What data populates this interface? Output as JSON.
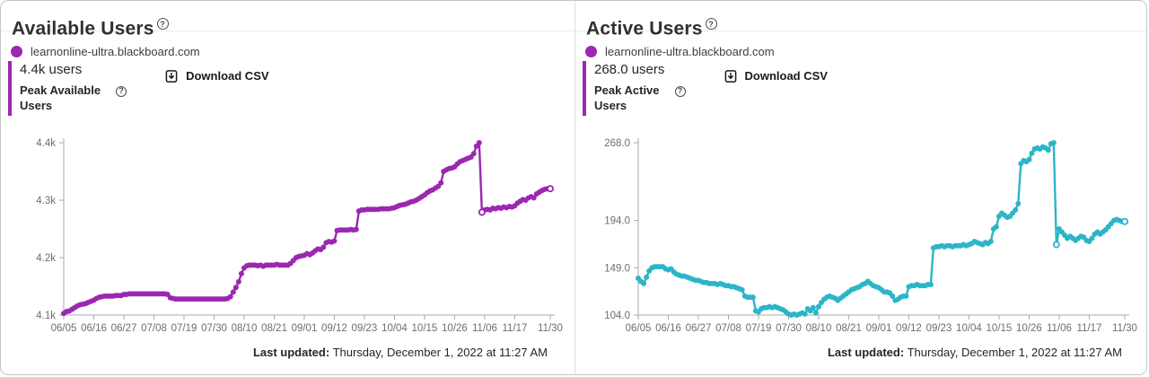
{
  "legend": {
    "label": "learnonline-ultra.blackboard.com",
    "dot_color": "#9c27b0"
  },
  "footer": {
    "label": "Last updated:",
    "value": "Thursday, December 1, 2022 at 11:27 AM"
  },
  "colors": {
    "accent_purple": "#9c27b0",
    "line_teal": "#2cb5c8",
    "axis_gray": "#a8a8a8",
    "text_dark": "#262626"
  },
  "panels": [
    {
      "stat_value": "4.4k users",
      "stat_label_line1": "Peak Available",
      "stat_label_line2": "Users",
      "download_label": "Download CSV"
    },
    {
      "stat_value": "268.0 users",
      "stat_label_line1": "Peak Active",
      "stat_label_line2": "Users",
      "download_label": "Download CSV"
    }
  ],
  "chart_data": [
    {
      "type": "line",
      "title": "Available Users",
      "series_name": "learnonline-ultra.blackboard.com",
      "color": "#9c27b0",
      "x_start_date": "06/05",
      "x_end_date": "11/30",
      "x_ticks": [
        {
          "label": "06/05",
          "day": 0
        },
        {
          "label": "06/16",
          "day": 11
        },
        {
          "label": "06/27",
          "day": 22
        },
        {
          "label": "07/08",
          "day": 33
        },
        {
          "label": "07/19",
          "day": 44
        },
        {
          "label": "07/30",
          "day": 55
        },
        {
          "label": "08/10",
          "day": 66
        },
        {
          "label": "08/21",
          "day": 77
        },
        {
          "label": "09/01",
          "day": 88
        },
        {
          "label": "09/12",
          "day": 99
        },
        {
          "label": "09/23",
          "day": 110
        },
        {
          "label": "10/04",
          "day": 121
        },
        {
          "label": "10/15",
          "day": 132
        },
        {
          "label": "10/26",
          "day": 143
        },
        {
          "label": "11/06",
          "day": 154
        },
        {
          "label": "11/17",
          "day": 165
        },
        {
          "label": "11/30",
          "day": 178
        }
      ],
      "y_ticks": [
        {
          "value": 4100,
          "label": "4.1k"
        },
        {
          "value": 4200,
          "label": "4.2k"
        },
        {
          "value": 4300,
          "label": "4.3k"
        },
        {
          "value": 4400,
          "label": "4.4k"
        }
      ],
      "ylim": [
        4100,
        4400
      ],
      "peak_value_label": "4.4k users",
      "open_marker_days": [
        153,
        178
      ],
      "values": [
        4103,
        4106,
        4107,
        4110,
        4113,
        4116,
        4118,
        4119,
        4120,
        4122,
        4124,
        4126,
        4129,
        4131,
        4132,
        4133,
        4133,
        4133,
        4133,
        4134,
        4134,
        4134,
        4136,
        4136,
        4137,
        4137,
        4137,
        4137,
        4137,
        4137,
        4137,
        4137,
        4137,
        4137,
        4137,
        4137,
        4137,
        4137,
        4136,
        4130,
        4129,
        4128,
        4128,
        4128,
        4128,
        4128,
        4128,
        4128,
        4128,
        4128,
        4128,
        4128,
        4128,
        4128,
        4128,
        4128,
        4128,
        4128,
        4128,
        4128,
        4129,
        4132,
        4140,
        4148,
        4158,
        4172,
        4182,
        4186,
        4187,
        4187,
        4187,
        4186,
        4187,
        4185,
        4187,
        4187,
        4187,
        4187,
        4188,
        4187,
        4187,
        4187,
        4187,
        4190,
        4195,
        4200,
        4202,
        4203,
        4204,
        4207,
        4205,
        4208,
        4212,
        4215,
        4214,
        4218,
        4226,
        4228,
        4227,
        4229,
        4247,
        4248,
        4248,
        4248,
        4248,
        4249,
        4248,
        4249,
        4281,
        4283,
        4283,
        4284,
        4284,
        4284,
        4284,
        4284,
        4285,
        4285,
        4285,
        4285,
        4286,
        4287,
        4289,
        4291,
        4292,
        4293,
        4295,
        4297,
        4298,
        4300,
        4303,
        4306,
        4309,
        4313,
        4316,
        4318,
        4321,
        4324,
        4330,
        4350,
        4353,
        4355,
        4356,
        4358,
        4363,
        4367,
        4369,
        4371,
        4373,
        4375,
        4381,
        4394,
        4400,
        4279,
        4283,
        4284,
        4283,
        4286,
        4285,
        4287,
        4286,
        4288,
        4287,
        4289,
        4288,
        4290,
        4295,
        4298,
        4301,
        4300,
        4304,
        4306,
        4304,
        4311,
        4314,
        4317,
        4319,
        4320,
        4320
      ]
    },
    {
      "type": "line",
      "title": "Active Users",
      "series_name": "learnonline-ultra.blackboard.com",
      "color": "#2cb5c8",
      "x_start_date": "06/05",
      "x_end_date": "11/30",
      "x_ticks": [
        {
          "label": "06/05",
          "day": 0
        },
        {
          "label": "06/16",
          "day": 11
        },
        {
          "label": "06/27",
          "day": 22
        },
        {
          "label": "07/08",
          "day": 33
        },
        {
          "label": "07/19",
          "day": 44
        },
        {
          "label": "07/30",
          "day": 55
        },
        {
          "label": "08/10",
          "day": 66
        },
        {
          "label": "08/21",
          "day": 77
        },
        {
          "label": "09/01",
          "day": 88
        },
        {
          "label": "09/12",
          "day": 99
        },
        {
          "label": "09/23",
          "day": 110
        },
        {
          "label": "10/04",
          "day": 121
        },
        {
          "label": "10/15",
          "day": 132
        },
        {
          "label": "10/26",
          "day": 143
        },
        {
          "label": "11/06",
          "day": 154
        },
        {
          "label": "11/17",
          "day": 165
        },
        {
          "label": "11/30",
          "day": 178
        }
      ],
      "y_ticks": [
        {
          "value": 104,
          "label": "104.0"
        },
        {
          "value": 149,
          "label": "149.0"
        },
        {
          "value": 194,
          "label": "194.0"
        },
        {
          "value": 268,
          "label": "268.0"
        }
      ],
      "ylim": [
        104,
        268
      ],
      "peak_value_label": "268.0 users",
      "open_marker_days": [
        153,
        178
      ],
      "values": [
        139,
        136,
        134,
        140,
        146,
        149,
        150,
        150,
        150,
        150,
        148,
        147,
        148,
        145,
        143,
        142,
        141,
        141,
        140,
        139,
        138,
        137,
        137,
        136,
        135,
        135,
        134,
        134,
        134,
        133,
        134,
        133,
        132,
        132,
        131,
        131,
        130,
        129,
        128,
        122,
        121,
        121,
        121,
        108,
        107,
        110,
        111,
        111,
        112,
        111,
        112,
        111,
        110,
        109,
        107,
        105,
        104,
        105,
        104,
        105,
        106,
        105,
        110,
        108,
        111,
        106,
        112,
        116,
        119,
        121,
        122,
        121,
        120,
        118,
        120,
        122,
        124,
        126,
        128,
        129,
        130,
        131,
        133,
        134,
        136,
        134,
        132,
        131,
        130,
        128,
        126,
        126,
        125,
        122,
        118,
        119,
        121,
        122,
        122,
        131,
        132,
        132,
        133,
        132,
        132,
        132,
        133,
        133,
        168,
        169,
        169,
        170,
        169,
        170,
        170,
        169,
        170,
        170,
        170,
        171,
        170,
        171,
        172,
        174,
        173,
        172,
        171,
        173,
        172,
        174,
        186,
        188,
        198,
        201,
        199,
        197,
        198,
        201,
        204,
        210,
        248,
        251,
        250,
        252,
        258,
        262,
        263,
        262,
        264,
        263,
        261,
        267,
        268,
        171,
        186,
        183,
        180,
        177,
        179,
        177,
        175,
        177,
        179,
        178,
        175,
        174,
        177,
        181,
        183,
        181,
        183,
        185,
        188,
        191,
        194,
        195,
        194,
        193,
        193
      ]
    }
  ]
}
